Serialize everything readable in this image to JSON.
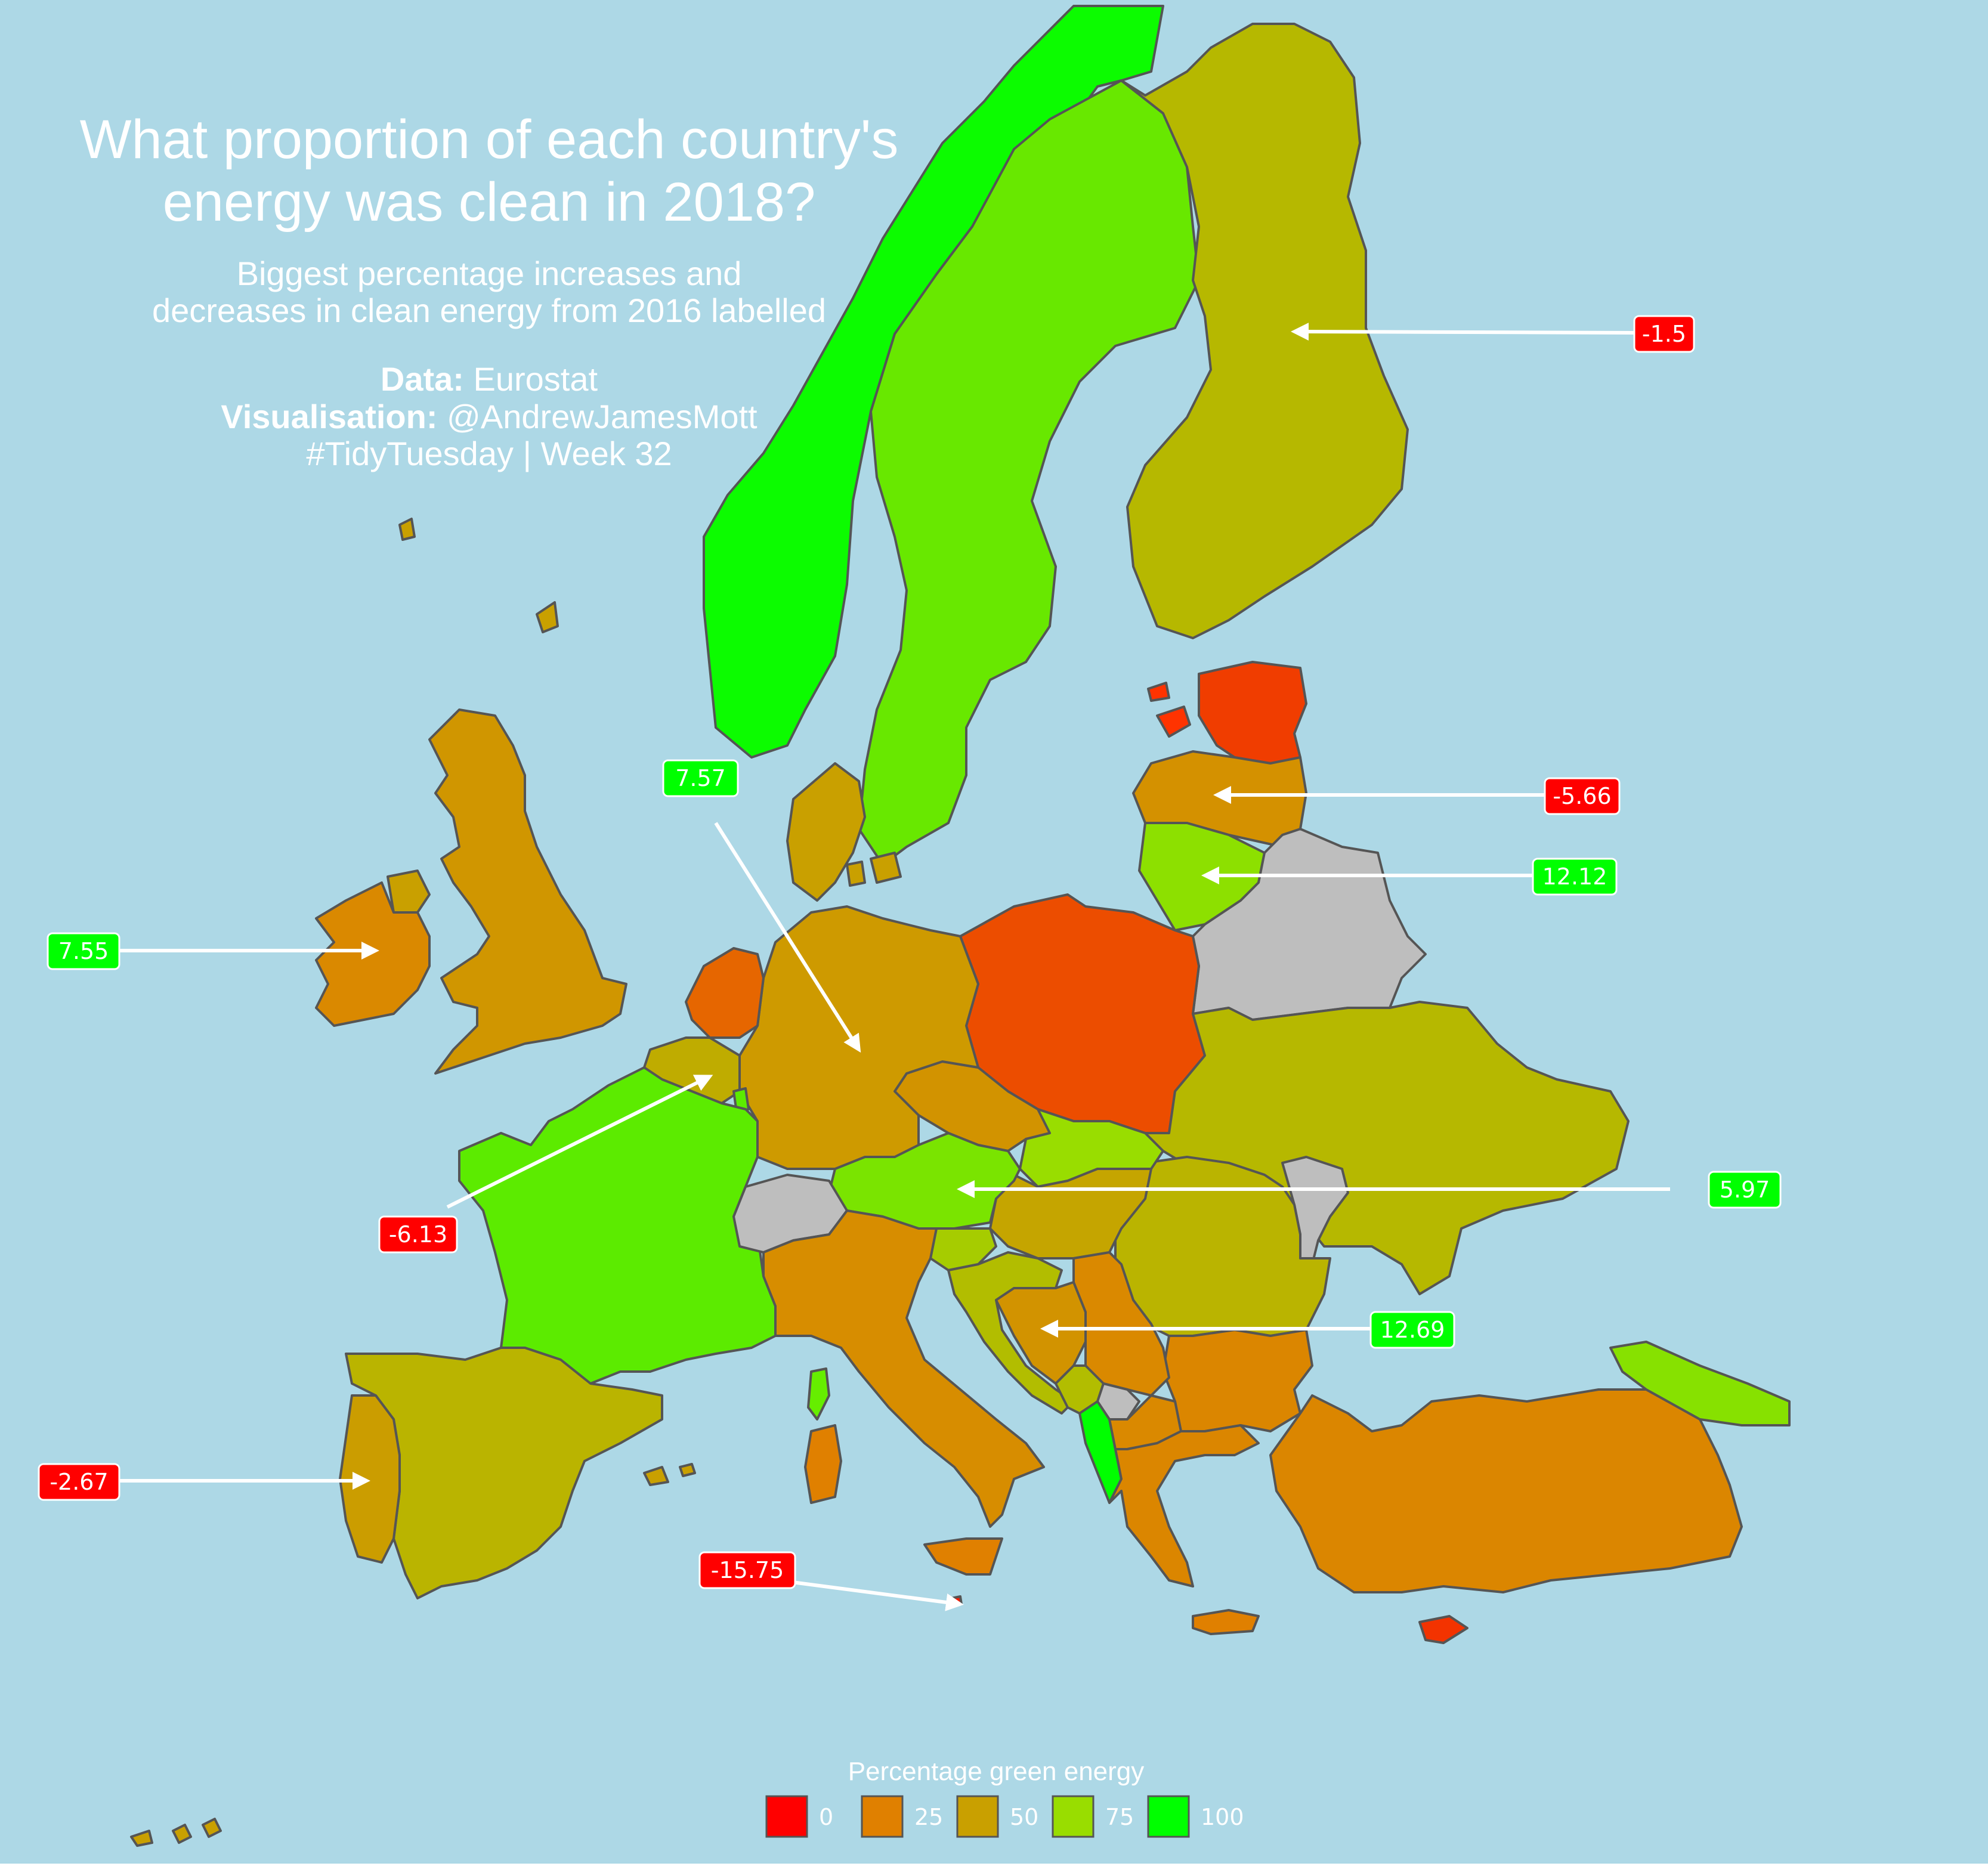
{
  "title": {
    "line1": "What proportion of each country's",
    "line2": "energy was clean in 2018?"
  },
  "subtitle": {
    "line1": "Biggest percentage increases and",
    "line2": "decreases in clean energy from 2016 labelled"
  },
  "credits": {
    "data_label": "Data:",
    "data_value": " Eurostat",
    "vis_label": "Visualisation:",
    "vis_value": " @AndrewJamesMott",
    "tag": "#TidyTuesday | Week 32"
  },
  "colors": {
    "sea": "#add8e6",
    "border": "#555555",
    "missing": "#bebebe",
    "increase_box": "#00ff00",
    "decrease_box": "#ff0000",
    "arrow": "#ffffff"
  },
  "legend": {
    "title": "Percentage green energy",
    "items": [
      {
        "label": "0",
        "color": "#ff0000"
      },
      {
        "label": "25",
        "color": "#e08000"
      },
      {
        "label": "50",
        "color": "#c9a000"
      },
      {
        "label": "75",
        "color": "#99dd00"
      },
      {
        "label": "100",
        "color": "#00ff00"
      }
    ]
  },
  "map_data": {
    "measure": "Percentage green energy",
    "scale": {
      "min": 0,
      "max": 100
    },
    "countries": [
      {
        "name": "Norway",
        "pct": 98
      },
      {
        "name": "Sweden",
        "pct": 83
      },
      {
        "name": "Finland",
        "pct": 60
      },
      {
        "name": "Iceland",
        "pct": 100
      },
      {
        "name": "Estonia",
        "pct": 12
      },
      {
        "name": "Latvia",
        "pct": 38
      },
      {
        "name": "Lithuania",
        "pct": 77
      },
      {
        "name": "Belarus",
        "pct": null
      },
      {
        "name": "Poland",
        "pct": 15
      },
      {
        "name": "Germany",
        "pct": 45
      },
      {
        "name": "Denmark",
        "pct": 50
      },
      {
        "name": "Netherlands",
        "pct": 20
      },
      {
        "name": "Belgium",
        "pct": 55
      },
      {
        "name": "Luxembourg",
        "pct": 85
      },
      {
        "name": "France",
        "pct": 85
      },
      {
        "name": "Switzerland",
        "pct": null
      },
      {
        "name": "United Kingdom",
        "pct": 42
      },
      {
        "name": "Ireland",
        "pct": 32
      },
      {
        "name": "Spain",
        "pct": 58
      },
      {
        "name": "Portugal",
        "pct": 48
      },
      {
        "name": "Italy",
        "pct": 35
      },
      {
        "name": "Austria",
        "pct": 80
      },
      {
        "name": "Czechia",
        "pct": 40
      },
      {
        "name": "Slovakia",
        "pct": 75
      },
      {
        "name": "Hungary",
        "pct": 52
      },
      {
        "name": "Slovenia",
        "pct": 68
      },
      {
        "name": "Croatia",
        "pct": 62
      },
      {
        "name": "Bosnia and Herzegovina",
        "pct": 40
      },
      {
        "name": "Serbia",
        "pct": 32
      },
      {
        "name": "Montenegro",
        "pct": 62
      },
      {
        "name": "Kosovo",
        "pct": null
      },
      {
        "name": "Albania",
        "pct": 100
      },
      {
        "name": "North Macedonia",
        "pct": 32
      },
      {
        "name": "Greece",
        "pct": 30
      },
      {
        "name": "Bulgaria",
        "pct": 30
      },
      {
        "name": "Romania",
        "pct": 58
      },
      {
        "name": "Moldova",
        "pct": null
      },
      {
        "name": "Ukraine",
        "pct": 60
      },
      {
        "name": "Turkey",
        "pct": 30
      },
      {
        "name": "Georgia",
        "pct": 78
      },
      {
        "name": "Cyprus",
        "pct": 10
      },
      {
        "name": "Malta",
        "pct": 5
      }
    ],
    "annotations": [
      {
        "country": "Finland",
        "change": "-1.5",
        "direction": "decrease"
      },
      {
        "country": "Estonia",
        "change": "-5.66",
        "direction": "decrease"
      },
      {
        "country": "Lithuania",
        "change": "12.12",
        "direction": "increase"
      },
      {
        "country": "Germany",
        "change": "7.57",
        "direction": "increase"
      },
      {
        "country": "Ireland",
        "change": "7.55",
        "direction": "increase"
      },
      {
        "country": "Belgium",
        "change": "-6.13",
        "direction": "decrease"
      },
      {
        "country": "Austria",
        "change": "5.97",
        "direction": "increase"
      },
      {
        "country": "Croatia",
        "change": "12.69",
        "direction": "increase"
      },
      {
        "country": "Portugal",
        "change": "-2.67",
        "direction": "decrease"
      },
      {
        "country": "Malta",
        "change": "-15.75",
        "direction": "decrease"
      }
    ]
  }
}
